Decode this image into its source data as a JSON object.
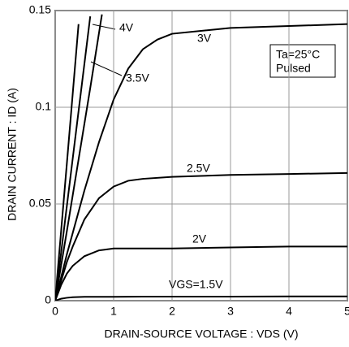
{
  "chart_data": {
    "type": "line",
    "xlabel": "DRAIN-SOURCE VOLTAGE : VDS (V)",
    "ylabel": "DRAIN CURRENT : ID (A)",
    "xlim": [
      0,
      5
    ],
    "xticks": [
      0,
      1,
      2,
      3,
      4,
      5
    ],
    "ylim": [
      0,
      0.15
    ],
    "yticks": [
      0,
      0.05,
      0.1,
      0.15
    ],
    "grid": true,
    "annotations": [
      "Ta=25°C",
      "Pulsed"
    ],
    "series": [
      {
        "name": "VGS=1.5V",
        "color": "#000000",
        "x": [
          0,
          0.1,
          0.2,
          0.3,
          0.5,
          0.75,
          1,
          1.5,
          2,
          3,
          4,
          5
        ],
        "values": [
          0,
          0.001,
          0.0015,
          0.0018,
          0.002,
          0.002,
          0.002,
          0.0021,
          0.0021,
          0.0021,
          0.0022,
          0.0022
        ]
      },
      {
        "name": "2V",
        "color": "#000000",
        "x": [
          0,
          0.1,
          0.2,
          0.3,
          0.5,
          0.75,
          1,
          1.5,
          2,
          3,
          4,
          5
        ],
        "values": [
          0,
          0.008,
          0.014,
          0.018,
          0.023,
          0.026,
          0.027,
          0.027,
          0.027,
          0.0275,
          0.028,
          0.028
        ]
      },
      {
        "name": "2.5V",
        "color": "#000000",
        "x": [
          0,
          0.1,
          0.2,
          0.3,
          0.5,
          0.75,
          1,
          1.25,
          1.5,
          2,
          3,
          4,
          5
        ],
        "values": [
          0,
          0.01,
          0.02,
          0.028,
          0.042,
          0.053,
          0.059,
          0.062,
          0.063,
          0.064,
          0.065,
          0.0655,
          0.066
        ]
      },
      {
        "name": "3V",
        "color": "#000000",
        "x": [
          0,
          0.1,
          0.2,
          0.3,
          0.5,
          0.75,
          1,
          1.25,
          1.5,
          1.75,
          2,
          3,
          4,
          5
        ],
        "values": [
          0,
          0.012,
          0.024,
          0.035,
          0.057,
          0.082,
          0.104,
          0.12,
          0.13,
          0.135,
          0.138,
          0.141,
          0.142,
          0.143
        ]
      },
      {
        "name": "3.5V",
        "color": "#000000",
        "x": [
          0,
          0.2,
          0.4,
          0.6,
          0.8
        ],
        "values": [
          0,
          0.036,
          0.073,
          0.11,
          0.148
        ]
      },
      {
        "name": "4V",
        "color": "#000000",
        "x": [
          0,
          0.2,
          0.4,
          0.6
        ],
        "values": [
          0,
          0.049,
          0.098,
          0.147
        ]
      },
      {
        "color": "#000000",
        "x": [
          0,
          0.2,
          0.4
        ],
        "values": [
          0,
          0.071,
          0.143
        ]
      }
    ]
  }
}
